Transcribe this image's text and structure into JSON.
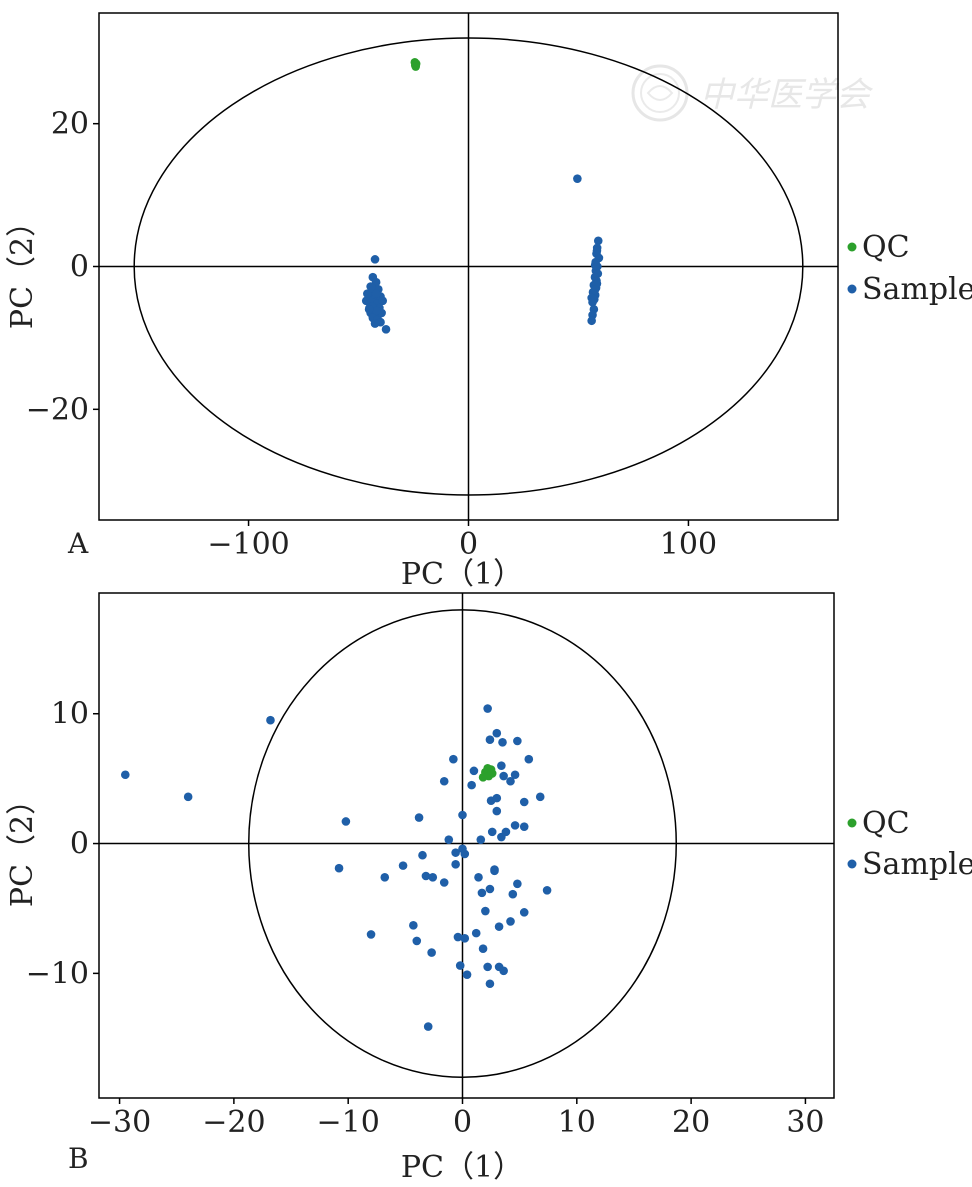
{
  "chart_data": [
    {
      "panel": "A",
      "type": "scatter",
      "xlabel": "PC（1）",
      "ylabel": "PC（2）",
      "xlim": [
        -168,
        168
      ],
      "ylim": [
        -35.5,
        35.5
      ],
      "xticks": [
        -100,
        0,
        100
      ],
      "xtick_labels": [
        "−100",
        "0",
        "100"
      ],
      "yticks": [
        -20,
        0,
        20
      ],
      "ytick_labels": [
        "−20",
        "0",
        "20"
      ],
      "grid": false,
      "legend_placement": "right",
      "ellipse": {
        "rx": 152,
        "ry": 32
      },
      "series": [
        {
          "name": "QC",
          "color": "#2ca02c",
          "points": [
            [
              -24.4,
              28.6
            ],
            [
              -24.2,
              28.2
            ],
            [
              -23.8,
              28.4
            ],
            [
              -24.0,
              28.0
            ]
          ]
        },
        {
          "name": "Sample",
          "color": "#1f5fa8",
          "points": [
            [
              -42.5,
              1.0
            ],
            [
              -43.5,
              -1.5
            ],
            [
              -42.0,
              -2.2
            ],
            [
              -44.5,
              -2.8
            ],
            [
              -43.0,
              -3.5
            ],
            [
              -41.0,
              -3.2
            ],
            [
              -45.5,
              -4.0
            ],
            [
              -42.5,
              -4.5
            ],
            [
              -40.0,
              -4.2
            ],
            [
              -46.5,
              -4.8
            ],
            [
              -44.0,
              -5.0
            ],
            [
              -41.5,
              -5.2
            ],
            [
              -39.0,
              -4.8
            ],
            [
              -45.0,
              -5.8
            ],
            [
              -43.0,
              -6.0
            ],
            [
              -40.5,
              -5.8
            ],
            [
              -44.5,
              -6.5
            ],
            [
              -41.0,
              -6.8
            ],
            [
              -39.5,
              -6.5
            ],
            [
              -43.5,
              -7.2
            ],
            [
              -41.5,
              -7.5
            ],
            [
              -40.0,
              -7.8
            ],
            [
              -42.5,
              -8.0
            ],
            [
              -37.5,
              -8.8
            ],
            [
              -46.0,
              -3.8
            ],
            [
              -44.0,
              -3.0
            ],
            [
              -42.0,
              -3.8
            ],
            [
              -43.8,
              -5.6
            ],
            [
              -41.8,
              -6.2
            ],
            [
              -45.2,
              -6.0
            ],
            [
              49.5,
              12.3
            ],
            [
              59.0,
              3.6
            ],
            [
              58.5,
              2.6
            ],
            [
              58.2,
              1.8
            ],
            [
              59.3,
              1.2
            ],
            [
              57.8,
              0.6
            ],
            [
              58.6,
              0.0
            ],
            [
              57.9,
              -0.6
            ],
            [
              58.8,
              -1.0
            ],
            [
              57.5,
              -1.5
            ],
            [
              58.2,
              -2.0
            ],
            [
              57.0,
              -2.6
            ],
            [
              58.0,
              -3.0
            ],
            [
              56.6,
              -3.6
            ],
            [
              57.6,
              -4.0
            ],
            [
              56.0,
              -4.4
            ],
            [
              57.2,
              -4.6
            ],
            [
              56.4,
              -5.0
            ],
            [
              57.0,
              -6.0
            ],
            [
              56.4,
              -6.8
            ],
            [
              56.0,
              -7.6
            ],
            [
              58.4,
              2.2
            ],
            [
              57.6,
              0.2
            ],
            [
              58.4,
              -2.4
            ],
            [
              57.4,
              -3.3
            ]
          ]
        }
      ]
    },
    {
      "panel": "B",
      "type": "scatter",
      "xlabel": "PC（1）",
      "ylabel": "PC（2）",
      "xlim": [
        -31.8,
        32.5
      ],
      "ylim": [
        -19.6,
        19.3
      ],
      "xticks": [
        -30,
        -20,
        -10,
        0,
        10,
        20,
        30
      ],
      "xtick_labels": [
        "−30",
        "−20",
        "−10",
        "0",
        "10",
        "20",
        "30"
      ],
      "yticks": [
        -10,
        0,
        10
      ],
      "ytick_labels": [
        "−10",
        "0",
        "10"
      ],
      "grid": false,
      "legend_placement": "right",
      "ellipse": {
        "rx": 18.7,
        "ry": 18.0
      },
      "series": [
        {
          "name": "QC",
          "color": "#2ca02c",
          "points": [
            [
              2.0,
              5.5
            ],
            [
              2.3,
              5.2
            ],
            [
              2.6,
              5.4
            ],
            [
              2.2,
              5.8
            ],
            [
              1.8,
              5.1
            ],
            [
              2.5,
              5.7
            ]
          ]
        },
        {
          "name": "Sample",
          "color": "#1f5fa8",
          "points": [
            [
              -29.5,
              5.3
            ],
            [
              -24.0,
              3.6
            ],
            [
              -16.8,
              9.5
            ],
            [
              -10.2,
              1.7
            ],
            [
              -10.8,
              -1.9
            ],
            [
              -8.0,
              -7.0
            ],
            [
              -6.8,
              -2.6
            ],
            [
              -5.2,
              -1.7
            ],
            [
              -4.3,
              -6.3
            ],
            [
              -4.0,
              -7.5
            ],
            [
              -3.8,
              2.0
            ],
            [
              -3.5,
              -0.9
            ],
            [
              -3.2,
              -2.5
            ],
            [
              -2.6,
              -2.6
            ],
            [
              -2.7,
              -8.4
            ],
            [
              -3.0,
              -14.1
            ],
            [
              -1.6,
              -3.0
            ],
            [
              -1.6,
              4.8
            ],
            [
              -1.2,
              0.3
            ],
            [
              -0.8,
              6.5
            ],
            [
              -0.6,
              -0.7
            ],
            [
              -0.6,
              -1.6
            ],
            [
              -0.4,
              -7.2
            ],
            [
              -0.2,
              -9.4
            ],
            [
              0.0,
              2.2
            ],
            [
              0.0,
              -0.4
            ],
            [
              0.2,
              -0.8
            ],
            [
              0.2,
              -7.3
            ],
            [
              0.4,
              -10.1
            ],
            [
              0.8,
              4.5
            ],
            [
              1.0,
              5.6
            ],
            [
              1.2,
              -6.9
            ],
            [
              1.4,
              -2.6
            ],
            [
              1.6,
              0.3
            ],
            [
              1.7,
              -3.8
            ],
            [
              1.8,
              -8.1
            ],
            [
              2.0,
              -5.2
            ],
            [
              2.2,
              -9.5
            ],
            [
              2.2,
              10.4
            ],
            [
              2.4,
              8.0
            ],
            [
              2.4,
              -3.5
            ],
            [
              2.4,
              -10.8
            ],
            [
              2.5,
              3.3
            ],
            [
              2.6,
              0.9
            ],
            [
              2.8,
              -2.1
            ],
            [
              3.0,
              3.5
            ],
            [
              3.0,
              8.5
            ],
            [
              3.0,
              2.5
            ],
            [
              3.2,
              -6.4
            ],
            [
              3.2,
              -9.5
            ],
            [
              3.4,
              0.5
            ],
            [
              3.4,
              6.0
            ],
            [
              3.5,
              7.8
            ],
            [
              3.6,
              5.2
            ],
            [
              3.6,
              -9.8
            ],
            [
              3.8,
              0.9
            ],
            [
              4.2,
              4.8
            ],
            [
              4.2,
              -6.0
            ],
            [
              4.4,
              -3.9
            ],
            [
              4.6,
              5.3
            ],
            [
              4.6,
              1.4
            ],
            [
              4.8,
              7.9
            ],
            [
              4.8,
              -3.1
            ],
            [
              5.4,
              3.2
            ],
            [
              5.4,
              1.3
            ],
            [
              5.4,
              -5.3
            ],
            [
              5.8,
              6.5
            ],
            [
              6.8,
              3.6
            ],
            [
              7.4,
              -3.6
            ],
            [
              2.8,
              -2.0
            ]
          ]
        }
      ]
    }
  ],
  "watermark_text": "中华医学会"
}
